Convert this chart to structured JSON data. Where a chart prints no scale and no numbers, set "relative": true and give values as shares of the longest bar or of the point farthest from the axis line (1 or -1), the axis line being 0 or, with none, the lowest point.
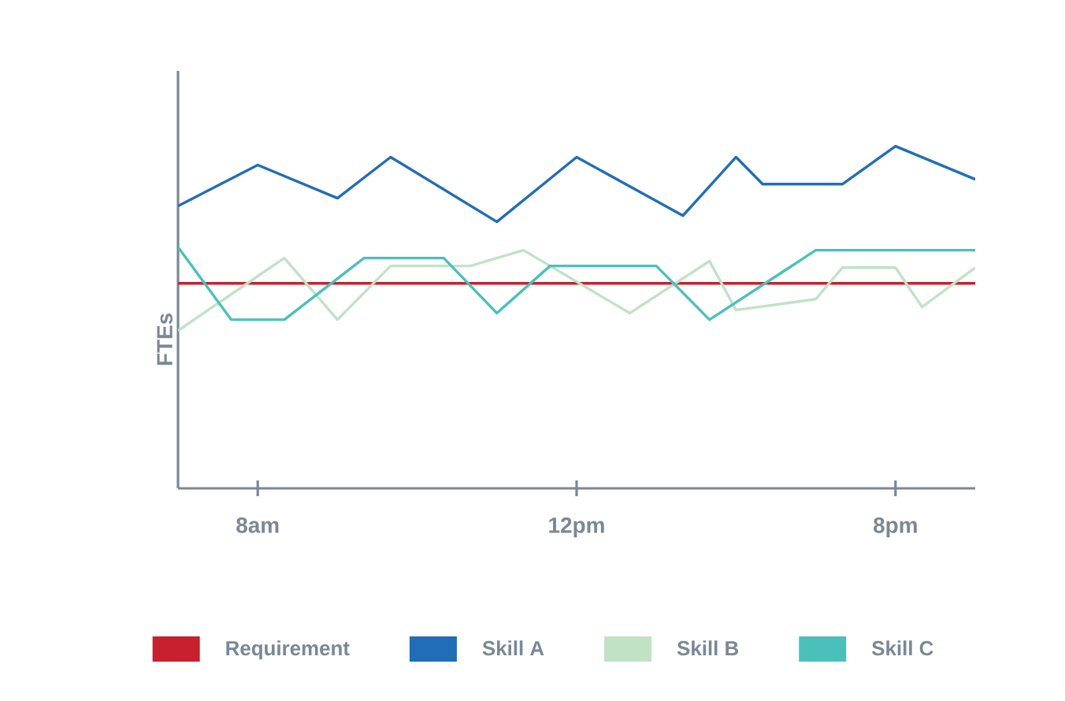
{
  "chart_data": {
    "type": "line",
    "relative": true,
    "ylabel": "FTEs",
    "categories": [
      null,
      null,
      null,
      "8am",
      null,
      null,
      null,
      null,
      null,
      null,
      null,
      null,
      null,
      null,
      null,
      "12pm",
      null,
      null,
      null,
      null,
      null,
      null,
      null,
      null,
      null,
      null,
      null,
      "8pm",
      null,
      null,
      null
    ],
    "legend": "bottom",
    "grid": false,
    "marker": "none",
    "line_style": "solid",
    "series": [
      {
        "name": "Requirement",
        "color": "#c8202f",
        "values": [
          0.599,
          0.599,
          0.599,
          0.599,
          0.599,
          0.599,
          0.599,
          0.599,
          0.599,
          0.599,
          0.599,
          0.599,
          0.599,
          0.599,
          0.599,
          0.599,
          0.599,
          0.599,
          0.599,
          0.599,
          0.599,
          0.599,
          0.599,
          0.599,
          0.599,
          0.599,
          0.599,
          0.599,
          0.599,
          0.599,
          0.599
        ]
      },
      {
        "name": "Skill A",
        "color": "#226db7",
        "values": [
          0.825,
          null,
          null,
          0.945,
          null,
          null,
          0.848,
          null,
          0.968,
          null,
          null,
          null,
          0.779,
          null,
          null,
          0.968,
          null,
          null,
          null,
          0.797,
          null,
          0.968,
          0.889,
          null,
          null,
          0.889,
          null,
          1,
          null,
          null,
          0.903
        ]
      },
      {
        "name": "Skill B",
        "color": "#c2e2c6",
        "values": [
          0.461,
          null,
          null,
          null,
          0.673,
          null,
          0.493,
          null,
          0.65,
          null,
          null,
          0.65,
          null,
          0.696,
          null,
          0.604,
          null,
          0.512,
          null,
          null,
          0.664,
          0.521,
          null,
          null,
          0.553,
          0.645,
          null,
          0.645,
          0.53,
          null,
          0.645
        ]
      },
      {
        "name": "Skill C",
        "color": "#4bc0bb",
        "values": [
          0.705,
          null,
          0.493,
          null,
          0.493,
          null,
          null,
          0.673,
          null,
          null,
          0.673,
          null,
          0.512,
          null,
          0.65,
          null,
          null,
          null,
          0.65,
          null,
          0.493,
          null,
          null,
          0.645,
          0.696,
          null,
          null,
          null,
          null,
          null,
          0.696
        ]
      }
    ]
  }
}
